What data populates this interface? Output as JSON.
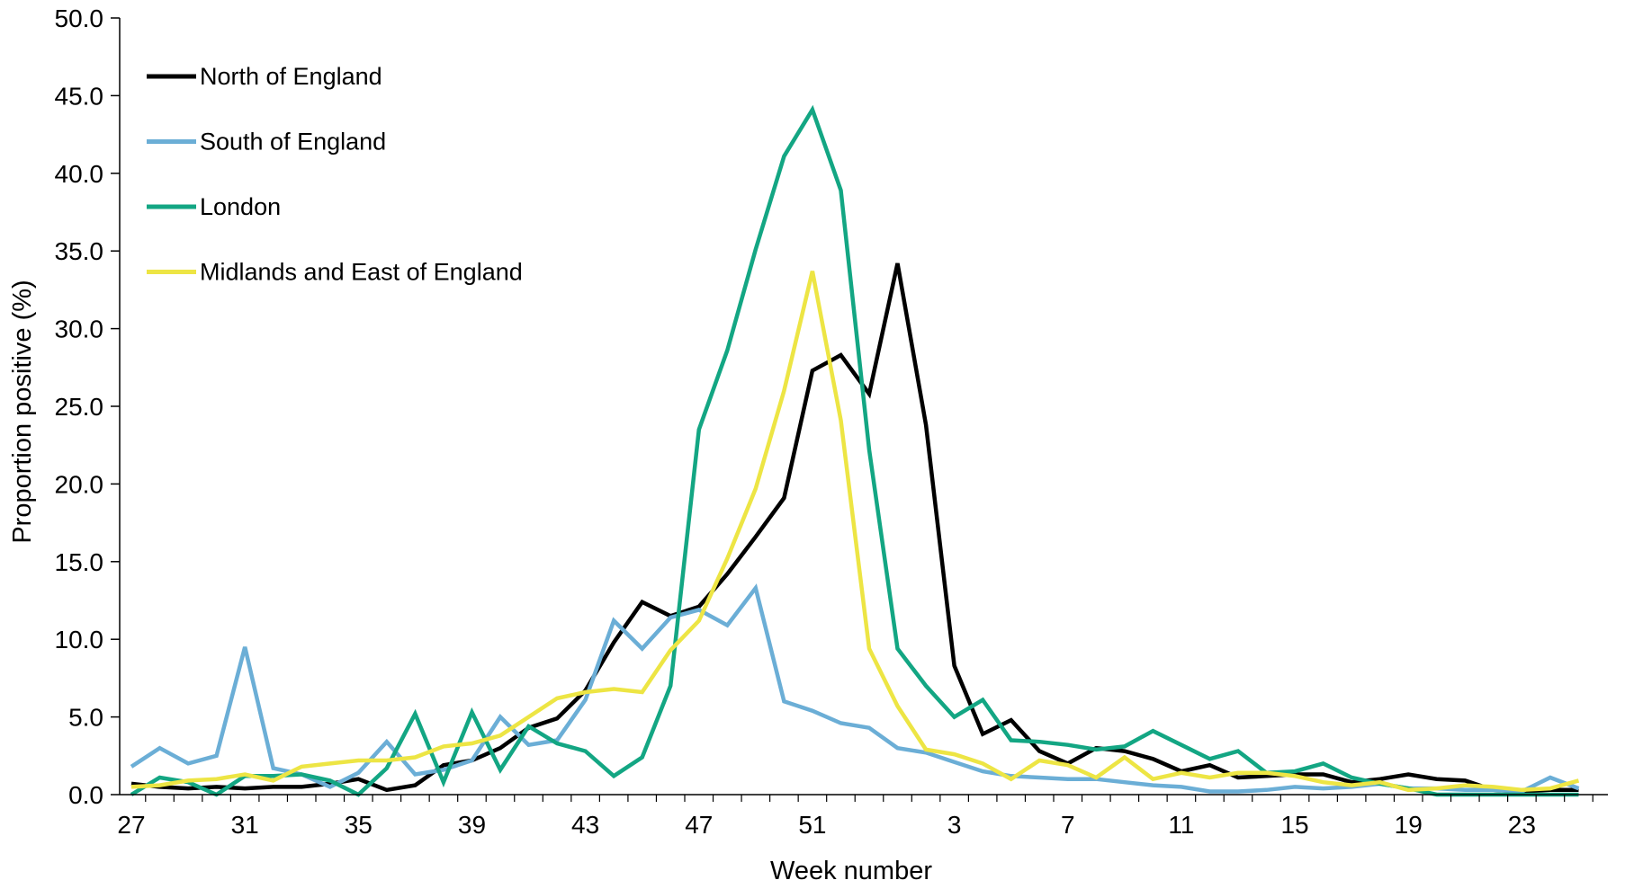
{
  "chart_data": {
    "type": "line",
    "xlabel": "Week number",
    "ylabel": "Proportion positive (%)",
    "ylim": [
      0,
      50
    ],
    "yticks": [
      "0.0",
      "5.0",
      "10.0",
      "15.0",
      "20.0",
      "25.0",
      "30.0",
      "35.0",
      "40.0",
      "45.0",
      "50.0"
    ],
    "x": [
      27,
      28,
      29,
      30,
      31,
      32,
      33,
      34,
      35,
      36,
      37,
      38,
      39,
      40,
      41,
      42,
      43,
      44,
      45,
      46,
      47,
      48,
      49,
      50,
      51,
      52,
      53,
      1,
      2,
      3,
      4,
      5,
      6,
      7,
      8,
      9,
      10,
      11,
      12,
      13,
      14,
      15,
      16,
      17,
      18,
      19,
      20,
      21,
      22,
      23,
      24,
      25
    ],
    "xticks": [
      "27",
      "31",
      "35",
      "39",
      "43",
      "47",
      "51",
      "3",
      "7",
      "11",
      "15",
      "19",
      "23"
    ],
    "grid": false,
    "legend_position": "top-left",
    "series": [
      {
        "name": "North of England",
        "color": "#000000",
        "values": [
          0.7,
          0.5,
          0.4,
          0.5,
          0.4,
          0.5,
          0.5,
          0.7,
          1.0,
          0.3,
          0.6,
          1.9,
          2.2,
          3.0,
          4.3,
          4.9,
          6.7,
          9.8,
          12.4,
          11.5,
          12.1,
          14.2,
          16.6,
          19.1,
          27.3,
          28.3,
          25.8,
          34.2,
          23.8,
          8.3,
          3.9,
          4.8,
          2.8,
          2.0,
          3.0,
          2.8,
          2.3,
          1.5,
          1.9,
          1.1,
          1.2,
          1.3,
          1.3,
          0.8,
          1.0,
          1.3,
          1.0,
          0.9,
          0.3,
          0.2,
          0.3,
          0.3
        ]
      },
      {
        "name": "South of England",
        "color": "#6baed6",
        "values": [
          1.8,
          3.0,
          2.0,
          2.5,
          9.5,
          1.7,
          1.3,
          0.5,
          1.4,
          3.4,
          1.3,
          1.6,
          2.2,
          5.0,
          3.2,
          3.5,
          6.1,
          11.2,
          9.4,
          11.4,
          11.9,
          10.9,
          13.3,
          6.0,
          5.4,
          4.6,
          4.3,
          3.0,
          2.7,
          2.1,
          1.5,
          1.2,
          1.1,
          1.0,
          1.0,
          0.8,
          0.6,
          0.5,
          0.2,
          0.2,
          0.3,
          0.5,
          0.4,
          0.5,
          0.7,
          0.4,
          0.4,
          0.3,
          0.3,
          0.2,
          1.1,
          0.4
        ]
      },
      {
        "name": "London",
        "color": "#13a683",
        "values": [
          0.0,
          1.1,
          0.8,
          0.0,
          1.2,
          1.2,
          1.3,
          0.9,
          0.0,
          1.7,
          5.2,
          0.8,
          5.3,
          1.6,
          4.4,
          3.3,
          2.8,
          1.2,
          2.4,
          7.0,
          23.5,
          28.6,
          35.1,
          41.1,
          44.1,
          38.9,
          22.2,
          9.4,
          7.0,
          5.0,
          6.1,
          3.5,
          3.4,
          3.2,
          2.9,
          3.1,
          4.1,
          3.2,
          2.3,
          2.8,
          1.4,
          1.5,
          2.0,
          1.1,
          0.7,
          0.4,
          0.0,
          0.0,
          0.0,
          0.0,
          0.0,
          0.0
        ]
      },
      {
        "name": "Midlands and East of England",
        "color": "#ede544",
        "values": [
          0.5,
          0.6,
          0.9,
          1.0,
          1.3,
          0.9,
          1.8,
          2.0,
          2.2,
          2.2,
          2.4,
          3.1,
          3.3,
          3.8,
          5.0,
          6.2,
          6.6,
          6.8,
          6.6,
          9.3,
          11.2,
          15.2,
          19.7,
          26.0,
          33.7,
          24.1,
          9.4,
          5.7,
          2.9,
          2.6,
          2.0,
          1.0,
          2.2,
          1.9,
          1.1,
          2.4,
          1.0,
          1.4,
          1.1,
          1.4,
          1.4,
          1.2,
          0.8,
          0.6,
          0.8,
          0.3,
          0.4,
          0.6,
          0.5,
          0.3,
          0.4,
          0.9
        ]
      }
    ]
  }
}
